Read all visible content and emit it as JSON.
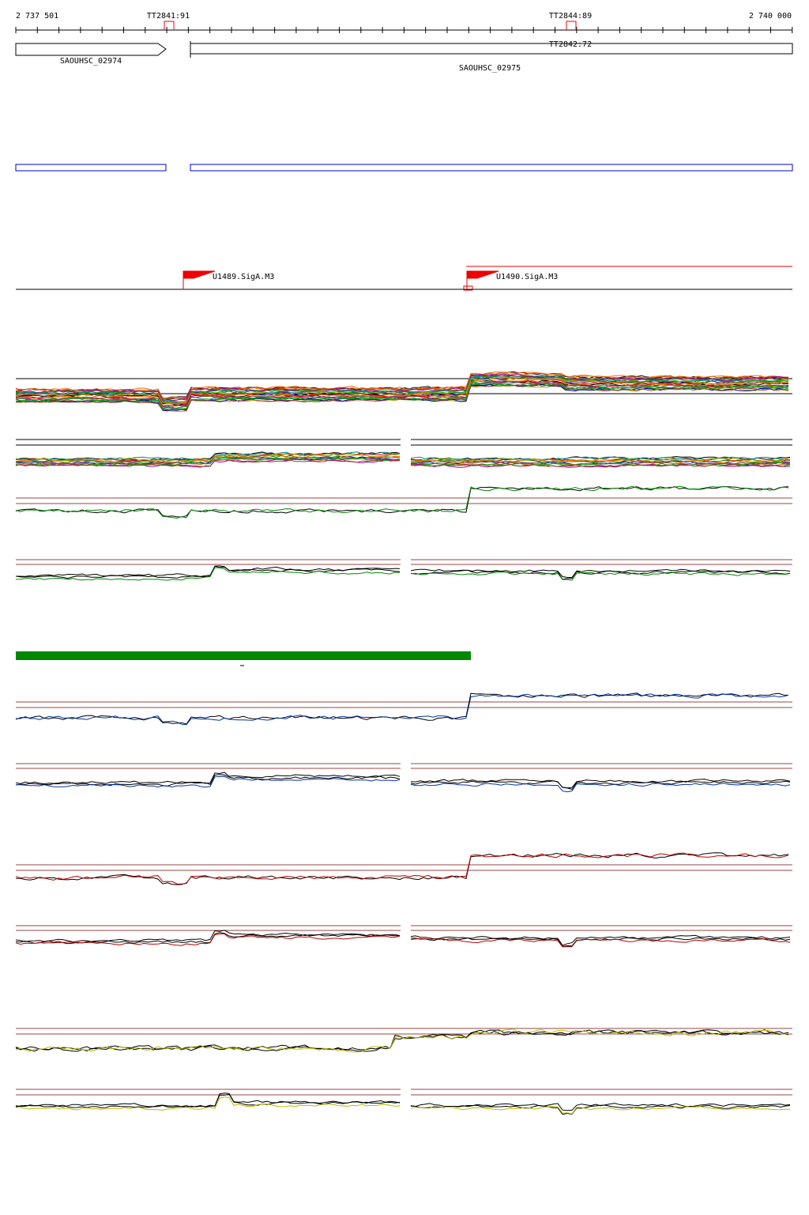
{
  "ruler": {
    "start": "2 737 501",
    "end": "2 740 000"
  },
  "terminators": [
    "TT2841:91",
    "TT2844:89",
    "TT2842:72"
  ],
  "genes": [
    "SAOUHSC_02974",
    "SAOUHSC_02975"
  ],
  "promoters": [
    "U1489.SigA.M3",
    "U1490.SigA.M3"
  ]
}
